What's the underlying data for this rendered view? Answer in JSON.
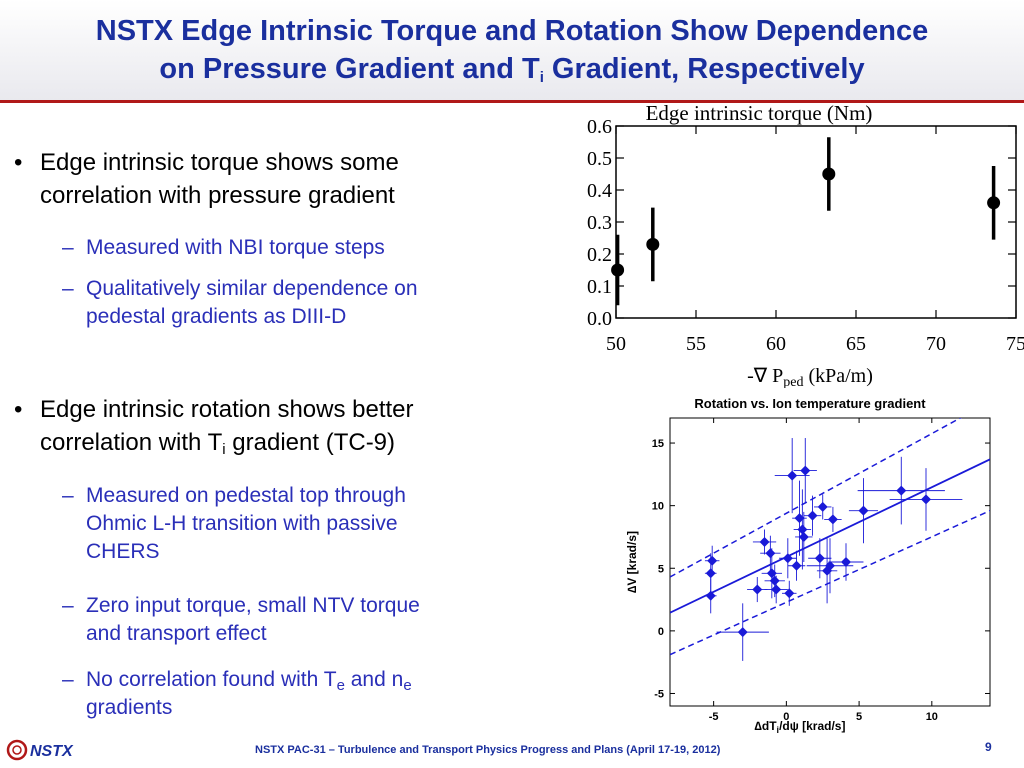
{
  "slide": {
    "title_line1": "NSTX Edge Intrinsic Torque and Rotation Show Dependence",
    "title_line2_a": "on Pressure Gradient and T",
    "title_line2_sub": "i",
    "title_line2_b": " Gradient, Respectively",
    "bullet_glyph": "•",
    "dash_glyph": "–",
    "footer": "NSTX PAC-31 – Turbulence and Transport Physics Progress and Plans (April 17-19, 2012)",
    "page_number": "9",
    "logo_text": "NSTX"
  },
  "bullets": {
    "b1_line1": "Edge intrinsic torque shows some",
    "b1_line2": "correlation with pressure gradient",
    "b1_sub1": "Measured with NBI torque steps",
    "b1_sub2_line1": "Qualitatively similar dependence on",
    "b1_sub2_line2": "pedestal gradients as DIII-D",
    "b2_line1": "Edge intrinsic rotation shows better",
    "b2_line2_a": "correlation with T",
    "b2_line2_sub": "i",
    "b2_line2_b": " gradient (TC-9)",
    "b2_sub1_line1": "Measured on pedestal top through",
    "b2_sub1_line2": "Ohmic L-H transition with passive",
    "b2_sub1_line3": "CHERS",
    "b2_sub2_line1": "Zero input torque, small NTV torque",
    "b2_sub2_line2": "and transport effect",
    "b2_sub3_a": "No correlation found with T",
    "b2_sub3_sub1": "e",
    "b2_sub3_b": " and n",
    "b2_sub3_sub2": "e",
    "b2_sub3_line2": "gradients"
  },
  "chart_data": [
    {
      "type": "scatter",
      "title": "Edge intrinsic torque (Nm)",
      "xlabel_a": "-∇ P",
      "xlabel_sub": "ped",
      "xlabel_b": " (kPa/m)",
      "xlim": [
        50,
        75
      ],
      "ylim": [
        0,
        0.6
      ],
      "xticks": [
        "50",
        "55",
        "60",
        "65",
        "70",
        "75"
      ],
      "yticks": [
        "0.0",
        "0.1",
        "0.2",
        "0.3",
        "0.4",
        "0.5",
        "0.6"
      ],
      "points": [
        {
          "x": 50.1,
          "y": 0.15,
          "err": 0.11
        },
        {
          "x": 52.3,
          "y": 0.23,
          "err": 0.115
        },
        {
          "x": 63.3,
          "y": 0.45,
          "err": 0.115
        },
        {
          "x": 73.6,
          "y": 0.36,
          "err": 0.115
        }
      ],
      "color": "#000000"
    },
    {
      "type": "scatter",
      "title": "Rotation vs. Ion temperature gradient",
      "xlabel_a": "∆dT",
      "xlabel_sub": "i",
      "xlabel_b": "/dψ [krad/s]",
      "ylabel": "∆V [krad/s]",
      "xlim": [
        -8,
        14
      ],
      "ylim": [
        -6,
        17
      ],
      "xticks": [
        "-5",
        "0",
        "5",
        "10"
      ],
      "xtick_values": [
        -5,
        0,
        5,
        10
      ],
      "yticks": [
        "-5",
        "0",
        "5",
        "10",
        "15"
      ],
      "ytick_values": [
        -5,
        0,
        5,
        10,
        15
      ],
      "points": [
        {
          "x": -5.2,
          "y": 2.8,
          "ex": 0.4,
          "ey": 1.4
        },
        {
          "x": -5.2,
          "y": 4.6,
          "ex": 0.4,
          "ey": 1.6
        },
        {
          "x": -5.1,
          "y": 5.6,
          "ex": 0.5,
          "ey": 1.2
        },
        {
          "x": -3.0,
          "y": -0.1,
          "ex": 1.8,
          "ey": 2.3
        },
        {
          "x": -2.0,
          "y": 3.3,
          "ex": 0.7,
          "ey": 1.0
        },
        {
          "x": -1.5,
          "y": 7.1,
          "ex": 0.8,
          "ey": 1.0
        },
        {
          "x": -1.1,
          "y": 6.2,
          "ex": 0.7,
          "ey": 1.4
        },
        {
          "x": -1.0,
          "y": 4.6,
          "ex": 0.7,
          "ey": 2.0
        },
        {
          "x": -0.8,
          "y": 4.0,
          "ex": 0.7,
          "ey": 1.3
        },
        {
          "x": -0.7,
          "y": 3.3,
          "ex": 0.8,
          "ey": 1.1
        },
        {
          "x": 0.2,
          "y": 3.0,
          "ex": 0.5,
          "ey": 1.0
        },
        {
          "x": 0.1,
          "y": 5.8,
          "ex": 0.6,
          "ey": 1.6
        },
        {
          "x": 0.4,
          "y": 12.4,
          "ex": 1.2,
          "ey": 3.0
        },
        {
          "x": 0.7,
          "y": 5.2,
          "ex": 0.6,
          "ey": 1.2
        },
        {
          "x": 0.9,
          "y": 9.0,
          "ex": 0.5,
          "ey": 3.0
        },
        {
          "x": 1.1,
          "y": 8.1,
          "ex": 0.6,
          "ey": 3.2
        },
        {
          "x": 1.2,
          "y": 7.5,
          "ex": 0.6,
          "ey": 2.0
        },
        {
          "x": 1.3,
          "y": 12.8,
          "ex": 0.8,
          "ey": 2.6
        },
        {
          "x": 1.8,
          "y": 9.2,
          "ex": 0.6,
          "ey": 1.6
        },
        {
          "x": 2.3,
          "y": 5.8,
          "ex": 0.8,
          "ey": 1.6
        },
        {
          "x": 2.5,
          "y": 9.9,
          "ex": 0.6,
          "ey": 1.0
        },
        {
          "x": 2.8,
          "y": 4.8,
          "ex": 0.7,
          "ey": 2.6
        },
        {
          "x": 3.0,
          "y": 5.2,
          "ex": 1.6,
          "ey": 2.2
        },
        {
          "x": 3.2,
          "y": 8.9,
          "ex": 0.6,
          "ey": 1.0
        },
        {
          "x": 4.1,
          "y": 5.5,
          "ex": 1.2,
          "ey": 1.5
        },
        {
          "x": 5.3,
          "y": 9.6,
          "ex": 1.0,
          "ey": 2.6
        },
        {
          "x": 7.9,
          "y": 11.2,
          "ex": 3.0,
          "ey": 2.7
        },
        {
          "x": 9.6,
          "y": 10.5,
          "ex": 2.5,
          "ey": 2.5
        }
      ],
      "fit_line": {
        "x": [
          -8,
          14
        ],
        "y": [
          1.45,
          13.7
        ]
      },
      "band_upper": {
        "x": [
          -8,
          14
        ],
        "y": [
          4.3,
          18.3
        ]
      },
      "band_lower": {
        "x": [
          -8,
          14
        ],
        "y": [
          -1.9,
          9.6
        ]
      },
      "color": "#1a1ad8"
    }
  ]
}
